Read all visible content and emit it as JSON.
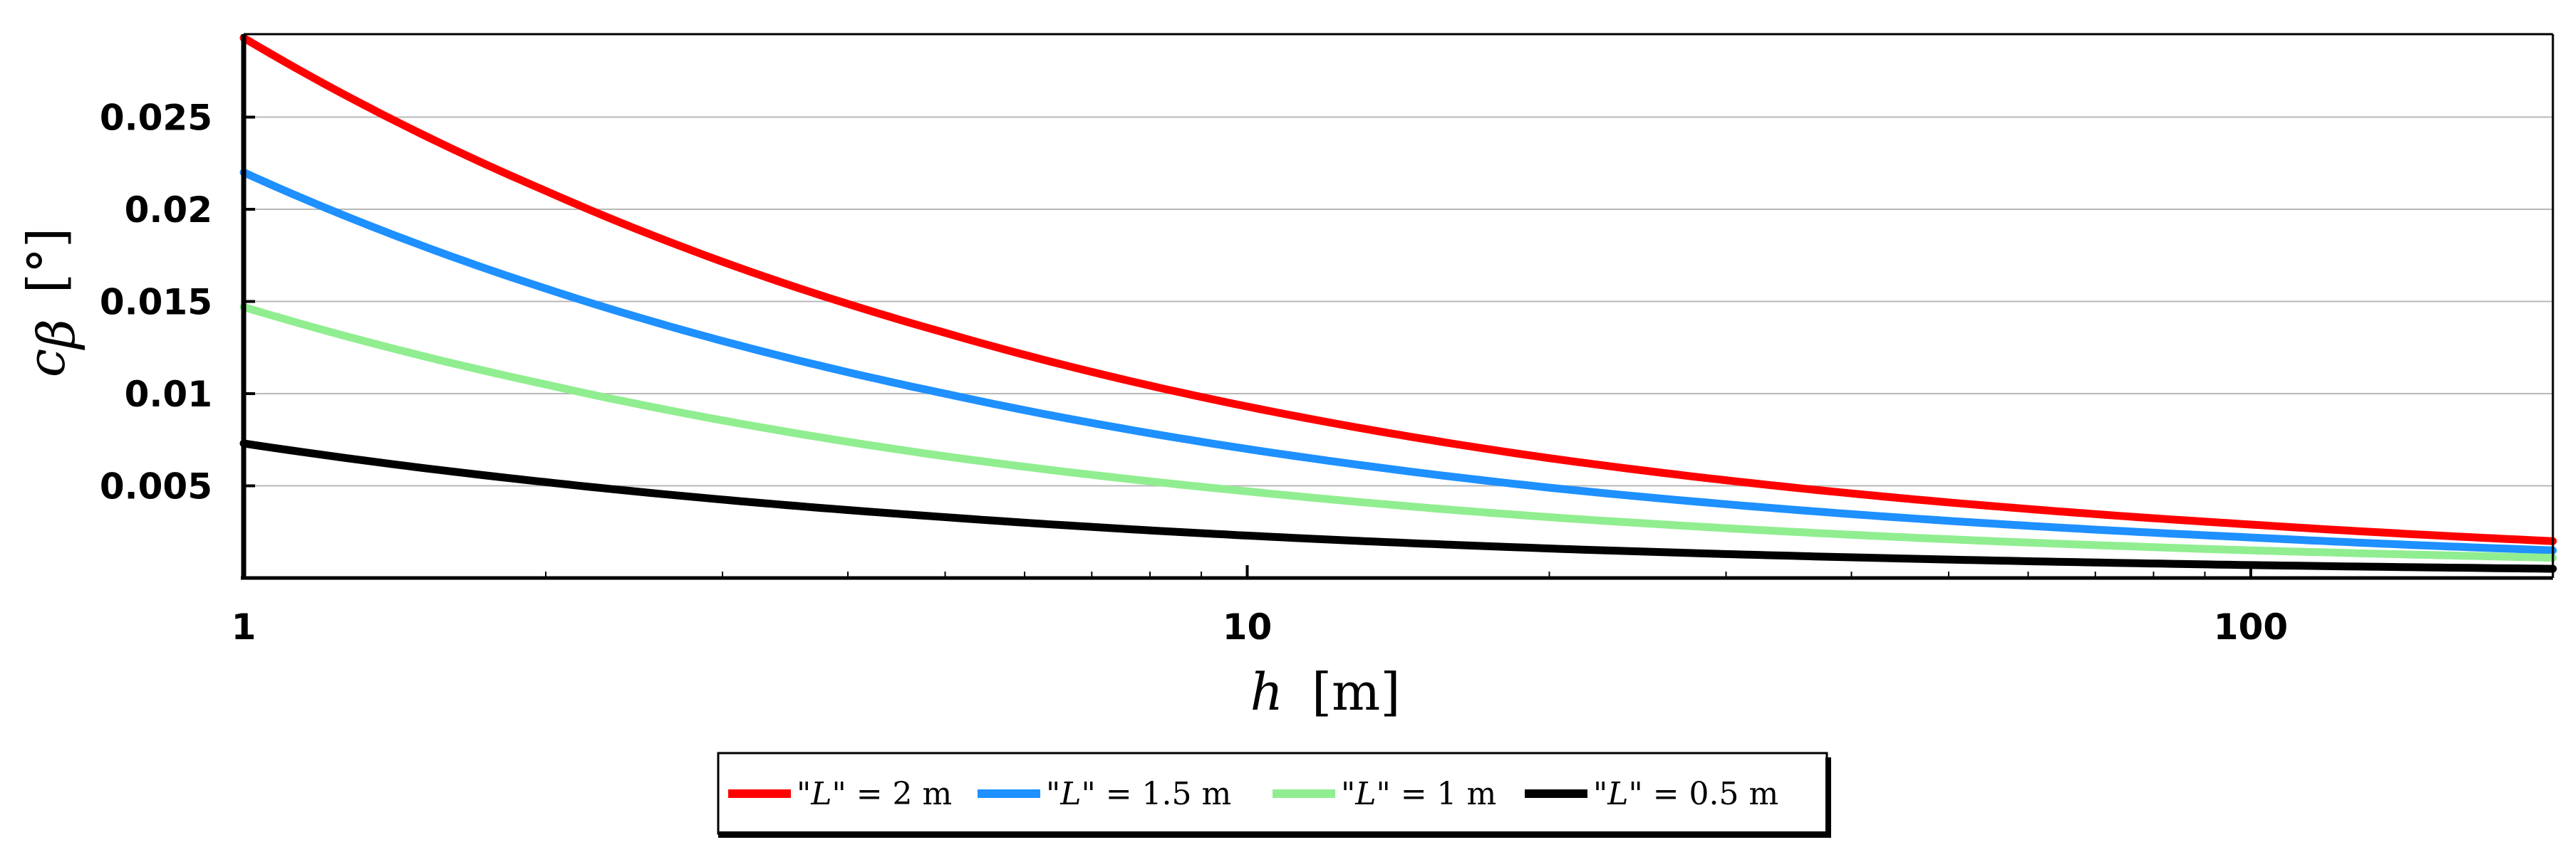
{
  "chart_data": {
    "type": "line",
    "title": "",
    "xlabel": "h  [m]",
    "xlabel_symbol": "h",
    "xlabel_unit": "[m]",
    "ylabel": "c_β  [°]",
    "ylabel_symbol": "c",
    "ylabel_subscript": "β",
    "ylabel_unit": "[°]",
    "xscale": "log",
    "xlim": [
      1,
      200
    ],
    "ylim": [
      0,
      0.0295
    ],
    "xticks": [
      1,
      10,
      100
    ],
    "xtick_labels": [
      "1",
      "10",
      "100"
    ],
    "yticks": [
      0.005,
      0.01,
      0.015,
      0.02,
      0.025
    ],
    "ytick_labels": [
      "0.005",
      "0.01",
      "0.015",
      "0.02",
      "0.025"
    ],
    "grid": "horizontal",
    "legend_position": "bottom-center",
    "x": [
      1,
      2,
      5,
      10,
      20,
      50,
      100,
      200
    ],
    "series": [
      {
        "name": "\"L\" = 2 m",
        "legend_quote_left": "\"",
        "legend_var": "L",
        "legend_rest": "\" = 2 m",
        "color": "#ff0000",
        "values": [
          0.0293,
          0.021,
          0.0133,
          0.0093,
          0.0065,
          0.0041,
          0.0029,
          0.002
        ]
      },
      {
        "name": "\"L\" = 1.5 m",
        "legend_quote_left": "\"",
        "legend_var": "L",
        "legend_rest": "\" = 1.5 m",
        "color": "#1e90ff",
        "values": [
          0.022,
          0.0157,
          0.01,
          0.007,
          0.0049,
          0.0031,
          0.0022,
          0.0015
        ]
      },
      {
        "name": "\"L\" = 1 m",
        "legend_quote_left": "\"",
        "legend_var": "L",
        "legend_rest": "\" = 1 m",
        "color": "#90ee90",
        "values": [
          0.0147,
          0.0105,
          0.0066,
          0.0047,
          0.0033,
          0.0021,
          0.0015,
          0.0011
        ]
      },
      {
        "name": "\"L\" = 0.5 m",
        "legend_quote_left": "\"",
        "legend_var": "L",
        "legend_rest": "\" = 0.5 m",
        "color": "#000000",
        "values": [
          0.0073,
          0.0052,
          0.0033,
          0.0023,
          0.0016,
          0.001,
          0.0007,
          0.0005
        ]
      }
    ]
  }
}
